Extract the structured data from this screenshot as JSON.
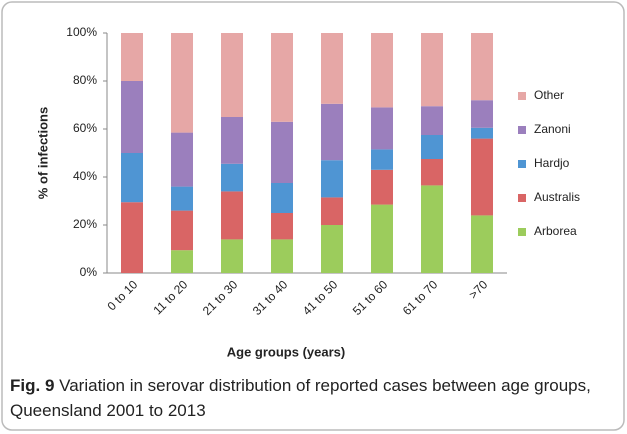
{
  "chart_data": {
    "type": "stacked_bar",
    "ylabel": "% of infections",
    "xlabel": "Age groups (years)",
    "caption_label": "Fig. 9",
    "caption": "Variation in serovar distribution of reported cases between age groups, Queensland 2001 to 2013",
    "categories": [
      "0 to 10",
      "11 to 20",
      "21 to 30",
      "31 to 40",
      "41 to 50",
      "51 to 60",
      "61 to 70",
      ">70"
    ],
    "series": [
      {
        "name": "Arborea",
        "color": "#9ccc5c",
        "values": [
          0,
          9.5,
          14,
          14,
          20,
          28.5,
          36.5,
          24
        ]
      },
      {
        "name": "Australis",
        "color": "#d96565",
        "values": [
          29.5,
          16.5,
          20,
          11,
          11.5,
          14.5,
          11,
          32
        ]
      },
      {
        "name": "Hardjo",
        "color": "#4f95d3",
        "values": [
          20.5,
          10,
          11.5,
          12.5,
          15.5,
          8.5,
          10,
          4.5
        ]
      },
      {
        "name": "Zanoni",
        "color": "#9b7fbd",
        "values": [
          30,
          22.5,
          19.5,
          25.5,
          23.5,
          17.5,
          12,
          11.5
        ]
      },
      {
        "name": "Other",
        "color": "#e6a7a6",
        "values": [
          20,
          41.5,
          35,
          37,
          29.5,
          31,
          30.5,
          28
        ]
      }
    ],
    "ylim": [
      0,
      100
    ],
    "yticks": [
      {
        "value": 0,
        "label": "0%"
      },
      {
        "value": 20,
        "label": "20%"
      },
      {
        "value": 40,
        "label": "40%"
      },
      {
        "value": 60,
        "label": "60%"
      },
      {
        "value": 80,
        "label": "80%"
      },
      {
        "value": 100,
        "label": "100%"
      }
    ],
    "grid": false,
    "legend": "right"
  }
}
